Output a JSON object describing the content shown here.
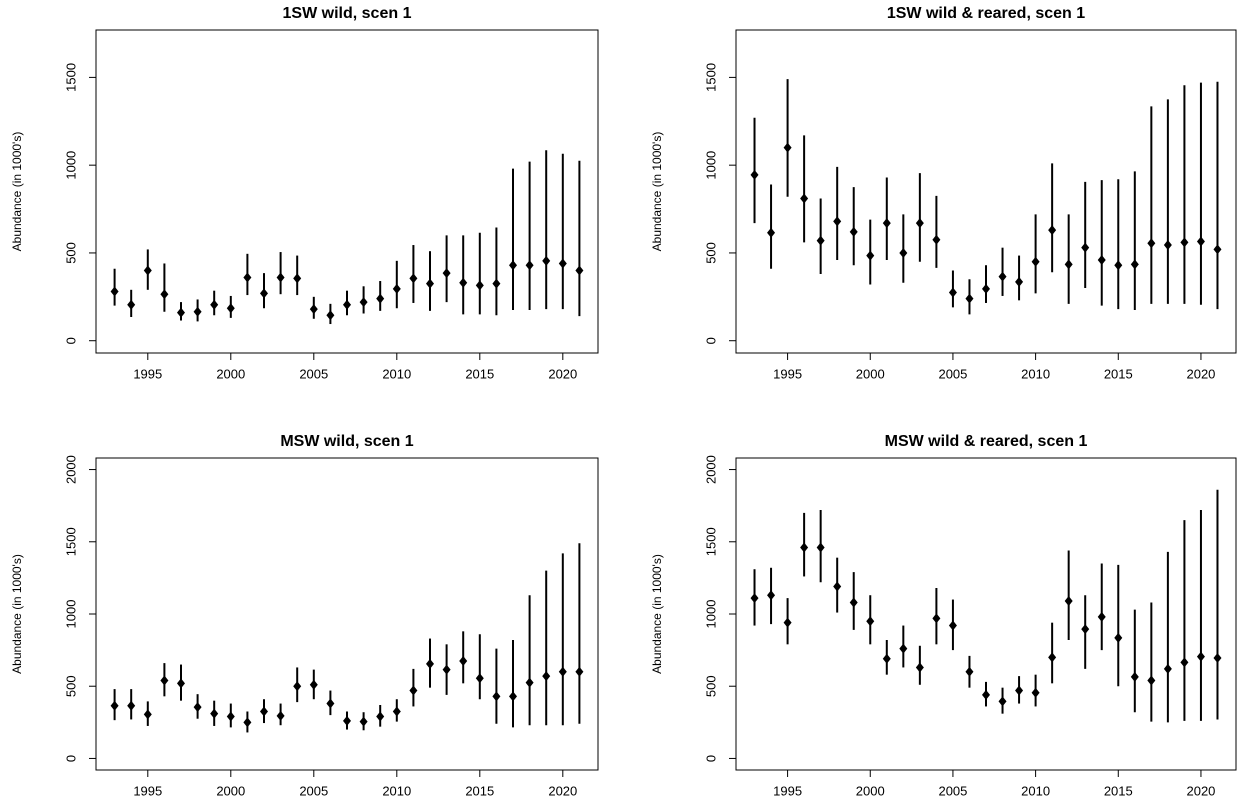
{
  "chart_data": [
    {
      "type": "errorbar",
      "title": "1SW wild, scen 1",
      "ylabel": "Abundance (in 1000's)",
      "color": "#000000",
      "x": [
        1993,
        1994,
        1995,
        1996,
        1997,
        1998,
        1999,
        2000,
        2001,
        2002,
        2003,
        2004,
        2005,
        2006,
        2007,
        2008,
        2009,
        2010,
        2011,
        2012,
        2013,
        2014,
        2015,
        2016,
        2017,
        2018,
        2019,
        2020,
        2021
      ],
      "values": [
        280,
        205,
        400,
        265,
        160,
        165,
        205,
        185,
        360,
        270,
        360,
        355,
        180,
        145,
        205,
        220,
        240,
        295,
        355,
        325,
        385,
        330,
        315,
        325,
        430,
        430,
        455,
        440,
        400
      ],
      "lower": [
        200,
        135,
        290,
        165,
        115,
        110,
        145,
        130,
        260,
        185,
        265,
        260,
        125,
        95,
        145,
        155,
        170,
        185,
        215,
        170,
        220,
        150,
        150,
        145,
        175,
        175,
        180,
        180,
        140
      ],
      "upper": [
        410,
        290,
        520,
        440,
        220,
        235,
        285,
        255,
        495,
        385,
        505,
        485,
        250,
        210,
        285,
        310,
        340,
        455,
        545,
        510,
        600,
        600,
        615,
        645,
        980,
        1020,
        1085,
        1065,
        1025
      ],
      "xlim": [
        1991.88,
        2022.12
      ],
      "ylim": [
        -70,
        1770
      ],
      "xticks": [
        1995,
        2000,
        2005,
        2010,
        2015,
        2020
      ],
      "yticks": [
        0,
        500,
        1000,
        1500
      ]
    },
    {
      "type": "errorbar",
      "title": "1SW wild & reared, scen 1",
      "ylabel": "Abundance (in 1000's)",
      "color": "#000000",
      "x": [
        1993,
        1994,
        1995,
        1996,
        1997,
        1998,
        1999,
        2000,
        2001,
        2002,
        2003,
        2004,
        2005,
        2006,
        2007,
        2008,
        2009,
        2010,
        2011,
        2012,
        2013,
        2014,
        2015,
        2016,
        2017,
        2018,
        2019,
        2020,
        2021
      ],
      "values": [
        945,
        615,
        1100,
        810,
        570,
        680,
        620,
        485,
        670,
        500,
        670,
        575,
        275,
        240,
        295,
        365,
        335,
        450,
        630,
        435,
        530,
        460,
        430,
        435,
        555,
        545,
        560,
        565,
        520
      ],
      "lower": [
        670,
        410,
        820,
        560,
        380,
        460,
        430,
        320,
        460,
        330,
        450,
        415,
        190,
        150,
        215,
        255,
        230,
        270,
        390,
        210,
        300,
        200,
        180,
        175,
        210,
        210,
        210,
        205,
        180
      ],
      "upper": [
        1270,
        890,
        1490,
        1170,
        810,
        990,
        875,
        690,
        930,
        720,
        955,
        825,
        400,
        350,
        430,
        530,
        485,
        720,
        1010,
        720,
        905,
        915,
        920,
        965,
        1335,
        1375,
        1455,
        1470,
        1475
      ],
      "xlim": [
        1991.88,
        2022.12
      ],
      "ylim": [
        -70,
        1770
      ],
      "xticks": [
        1995,
        2000,
        2005,
        2010,
        2015,
        2020
      ],
      "yticks": [
        0,
        500,
        1000,
        1500
      ]
    },
    {
      "type": "errorbar",
      "title": "MSW wild, scen 1",
      "ylabel": "Abundance (in 1000's)",
      "color": "#000000",
      "x": [
        1993,
        1994,
        1995,
        1996,
        1997,
        1998,
        1999,
        2000,
        2001,
        2002,
        2003,
        2004,
        2005,
        2006,
        2007,
        2008,
        2009,
        2010,
        2011,
        2012,
        2013,
        2014,
        2015,
        2016,
        2017,
        2018,
        2019,
        2020,
        2021
      ],
      "values": [
        365,
        365,
        305,
        540,
        520,
        355,
        310,
        290,
        250,
        325,
        295,
        500,
        510,
        380,
        260,
        255,
        290,
        325,
        470,
        655,
        615,
        675,
        555,
        430,
        430,
        525,
        570,
        600,
        600
      ],
      "lower": [
        265,
        270,
        225,
        430,
        400,
        275,
        225,
        215,
        180,
        245,
        230,
        390,
        410,
        300,
        200,
        195,
        220,
        255,
        360,
        490,
        440,
        520,
        410,
        240,
        215,
        230,
        230,
        230,
        240
      ],
      "upper": [
        480,
        480,
        395,
        660,
        650,
        445,
        400,
        380,
        325,
        410,
        380,
        630,
        615,
        470,
        325,
        320,
        370,
        410,
        620,
        830,
        790,
        880,
        860,
        760,
        820,
        1130,
        1300,
        1420,
        1490
      ],
      "xlim": [
        1991.88,
        2022.12
      ],
      "ylim": [
        -80,
        2080
      ],
      "xticks": [
        1995,
        2000,
        2005,
        2010,
        2015,
        2020
      ],
      "yticks": [
        0,
        500,
        1000,
        1500,
        2000
      ]
    },
    {
      "type": "errorbar",
      "title": "MSW wild & reared, scen 1",
      "ylabel": "Abundance (in 1000's)",
      "color": "#000000",
      "x": [
        1993,
        1994,
        1995,
        1996,
        1997,
        1998,
        1999,
        2000,
        2001,
        2002,
        2003,
        2004,
        2005,
        2006,
        2007,
        2008,
        2009,
        2010,
        2011,
        2012,
        2013,
        2014,
        2015,
        2016,
        2017,
        2018,
        2019,
        2020,
        2021
      ],
      "values": [
        1110,
        1130,
        940,
        1460,
        1460,
        1190,
        1080,
        950,
        690,
        760,
        630,
        970,
        920,
        600,
        440,
        395,
        470,
        455,
        700,
        1090,
        895,
        980,
        835,
        565,
        540,
        620,
        665,
        705,
        695
      ],
      "lower": [
        920,
        930,
        790,
        1260,
        1220,
        1010,
        890,
        790,
        580,
        630,
        510,
        790,
        750,
        490,
        360,
        310,
        380,
        360,
        520,
        820,
        620,
        750,
        500,
        320,
        255,
        250,
        260,
        260,
        270
      ],
      "upper": [
        1310,
        1320,
        1110,
        1700,
        1720,
        1390,
        1290,
        1130,
        820,
        920,
        780,
        1180,
        1100,
        710,
        530,
        490,
        570,
        580,
        940,
        1440,
        1130,
        1350,
        1340,
        1030,
        1080,
        1430,
        1650,
        1720,
        1860
      ],
      "xlim": [
        1991.88,
        2022.12
      ],
      "ylim": [
        -80,
        2080
      ],
      "xticks": [
        1995,
        2000,
        2005,
        2010,
        2015,
        2020
      ],
      "yticks": [
        0,
        500,
        1000,
        1500,
        2000
      ]
    }
  ]
}
